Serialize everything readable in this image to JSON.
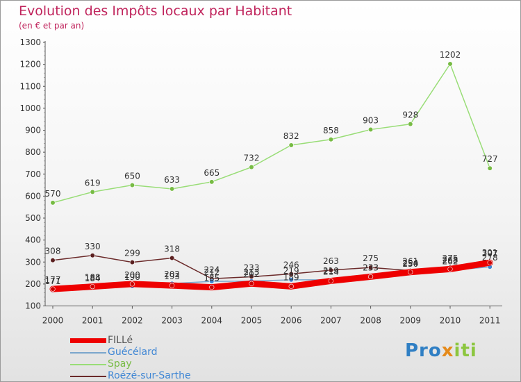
{
  "header": {
    "title": "Evolution des Impôts locaux par Habitant",
    "subtitle": "(en € et par an)"
  },
  "logo": {
    "part1": "Pro",
    "part2": "x",
    "part3": "iti"
  },
  "chart_data": {
    "type": "line",
    "title": "Evolution des Impôts locaux par Habitant",
    "subtitle": "(en € et par an)",
    "xlabel": "",
    "ylabel": "",
    "x": [
      "2000",
      "2001",
      "2002",
      "2003",
      "2004",
      "2005",
      "2006",
      "2007",
      "2008",
      "2009",
      "2010",
      "2011"
    ],
    "ylim": [
      100,
      1300
    ],
    "yticks": [
      100,
      200,
      300,
      400,
      500,
      600,
      700,
      800,
      900,
      1000,
      1100,
      1200,
      1300
    ],
    "grid": false,
    "legend_position": "bottom-left",
    "series": [
      {
        "name": "Spay",
        "color": "#99dd77",
        "marker": "#77bb44",
        "values": [
          570,
          619,
          650,
          633,
          665,
          732,
          832,
          858,
          903,
          928,
          1202,
          727
        ],
        "labels": [
          "570",
          "619",
          "650",
          "633",
          "665",
          "732",
          "832",
          "858",
          "903",
          "928",
          "1202",
          "727"
        ]
      },
      {
        "name": "Roézé-sur-Sarthe",
        "color": "#6b2a2a",
        "marker": "#5a1f1f",
        "values": [
          308,
          330,
          299,
          318,
          224,
          233,
          246,
          263,
          275,
          261,
          275,
          301
        ],
        "labels": [
          "308",
          "330",
          "299",
          "318",
          "224",
          "233",
          "246",
          "263",
          "275",
          "261",
          "275",
          "301"
        ]
      },
      {
        "name": "Guécélard",
        "color": "#7aa6cc",
        "marker": "#3f86d4",
        "values": [
          171,
          184,
          190,
          202,
          212,
          213,
          219,
          219,
          233,
          250,
          262,
          278
        ],
        "labels": [
          "171",
          "184",
          "190",
          "202",
          "212",
          "213",
          "219",
          "219",
          "233",
          "250",
          "262",
          "278"
        ]
      },
      {
        "name": "FILLé",
        "color": "#ee0000",
        "marker": "#cc0000",
        "thick": true,
        "values": [
          177,
          188,
          200,
          193,
          185,
          202,
          189,
          214,
          233,
          254,
          268,
          297
        ],
        "labels": [
          "177",
          "188",
          "200",
          "193",
          "185",
          "202",
          "189",
          "214",
          "233",
          "254",
          "268",
          "297"
        ]
      }
    ]
  },
  "legend": [
    {
      "label": "FILLé",
      "color": "#ee0000",
      "text_color": "#555555"
    },
    {
      "label": "Guécélard",
      "color": "#7aa6cc",
      "text_color": "#3f86d4"
    },
    {
      "label": "Spay",
      "color": "#99dd77",
      "text_color": "#77bb44"
    },
    {
      "label": "Roézé-sur-Sarthe",
      "color": "#6b2a2a",
      "text_color": "#3f86d4"
    }
  ]
}
